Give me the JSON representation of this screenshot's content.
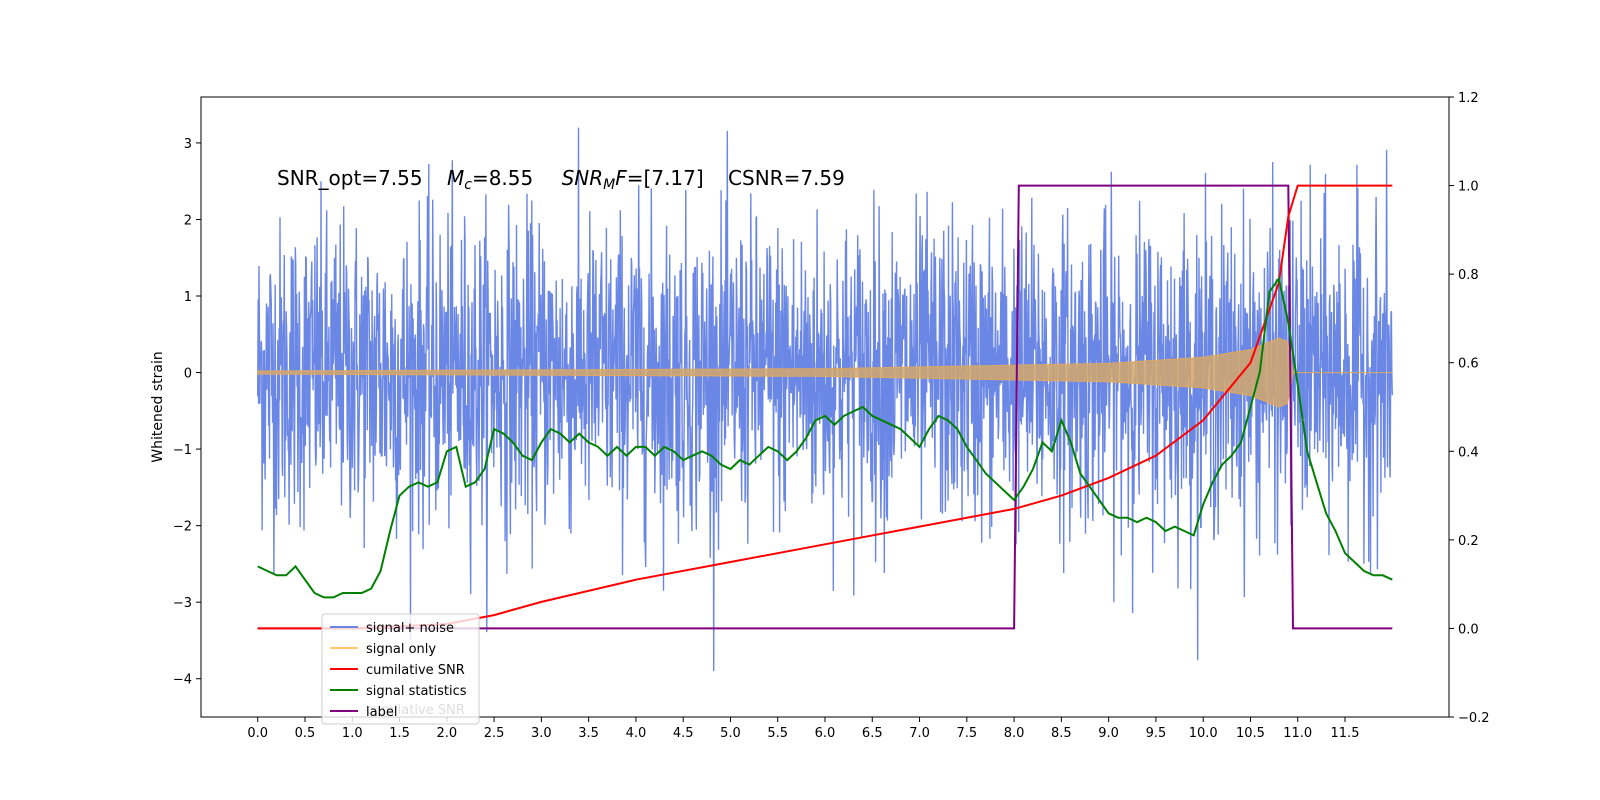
{
  "chart_data": {
    "type": "line",
    "title": "",
    "annotation": {
      "snr_opt": "SNR_opt=7.55",
      "mc_symbol": "M",
      "mc_sub": "c",
      "mc_value": "=8.55",
      "snrmf_symbol": "SNR",
      "snrmf_sub": "M",
      "snrmf_symbol2": "F",
      "snrmf_value": "=[7.17]",
      "csnr": "CSNR=7.59"
    },
    "ylabel": "Whitened strain",
    "xlabel": "",
    "xlim": [
      -0.6,
      12.6
    ],
    "ylim": [
      -4.5,
      3.6
    ],
    "y2lim": [
      -0.2,
      1.2
    ],
    "x_ticks": [
      "0.0",
      "0.5",
      "1.0",
      "1.5",
      "2.0",
      "2.5",
      "3.0",
      "3.5",
      "4.0",
      "4.5",
      "5.0",
      "5.5",
      "6.0",
      "6.5",
      "7.0",
      "7.5",
      "8.0",
      "8.5",
      "9.0",
      "9.5",
      "10.0",
      "10.5",
      "11.0",
      "11.5"
    ],
    "y_ticks": [
      "3",
      "2",
      "1",
      "0",
      "−1",
      "−2",
      "−3",
      "−4"
    ],
    "y2_ticks": [
      "1.2",
      "1.0",
      "0.8",
      "0.6",
      "0.4",
      "0.2",
      "0.0",
      "−0.2"
    ],
    "grid": false,
    "legend": {
      "position": "lower-left",
      "entries": [
        {
          "label": "signal+ noise",
          "color": "#6b87e5"
        },
        {
          "label": "signal only",
          "color": "#ffc869"
        },
        {
          "label": "cumilative SNR",
          "color": "#ff0000"
        },
        {
          "label": "signal statistics",
          "color": "#008000"
        },
        {
          "label": "label",
          "color": "#800080"
        }
      ],
      "hidden_text": "cumilative SNR"
    },
    "series": [
      {
        "name": "signal+ noise",
        "axis": "left",
        "color": "#6b87e5",
        "x_range": [
          0,
          12.0
        ],
        "amplitude_sd": 1.0
      },
      {
        "name": "signal only",
        "axis": "left",
        "color": "#d2a76b",
        "x_range": [
          0,
          12.0
        ],
        "envelope": [
          [
            0,
            0.02
          ],
          [
            6,
            0.05
          ],
          [
            9,
            0.12
          ],
          [
            10,
            0.2
          ],
          [
            10.5,
            0.3
          ],
          [
            10.8,
            0.45
          ],
          [
            10.9,
            0.4
          ],
          [
            10.95,
            0.0
          ],
          [
            12,
            0.0
          ]
        ]
      },
      {
        "name": "cumilative SNR",
        "axis": "right",
        "color": "#ff0000",
        "x": [
          0,
          1,
          2,
          2.5,
          3,
          4,
          5,
          6,
          7,
          8,
          8.5,
          9,
          9.5,
          10,
          10.5,
          10.8,
          10.9,
          11,
          12.0
        ],
        "y": [
          0,
          0,
          0.01,
          0.03,
          0.06,
          0.11,
          0.15,
          0.19,
          0.23,
          0.27,
          0.3,
          0.34,
          0.39,
          0.47,
          0.6,
          0.78,
          0.93,
          1.0,
          1.0
        ]
      },
      {
        "name": "signal statistics",
        "axis": "right",
        "color": "#008000",
        "x": [
          0,
          0.1,
          0.2,
          0.3,
          0.4,
          0.5,
          0.6,
          0.7,
          0.8,
          0.9,
          1.0,
          1.1,
          1.2,
          1.3,
          1.4,
          1.5,
          1.6,
          1.7,
          1.8,
          1.9,
          2.0,
          2.1,
          2.2,
          2.3,
          2.4,
          2.5,
          2.6,
          2.7,
          2.8,
          2.9,
          3.0,
          3.1,
          3.2,
          3.3,
          3.4,
          3.5,
          3.6,
          3.7,
          3.8,
          3.9,
          4.0,
          4.1,
          4.2,
          4.3,
          4.4,
          4.5,
          4.6,
          4.7,
          4.8,
          4.9,
          5.0,
          5.1,
          5.2,
          5.3,
          5.4,
          5.5,
          5.6,
          5.7,
          5.8,
          5.9,
          6.0,
          6.1,
          6.2,
          6.3,
          6.4,
          6.5,
          6.6,
          6.7,
          6.8,
          6.9,
          7.0,
          7.1,
          7.2,
          7.3,
          7.4,
          7.5,
          7.6,
          7.7,
          7.8,
          7.9,
          8.0,
          8.1,
          8.2,
          8.3,
          8.4,
          8.5,
          8.6,
          8.7,
          8.8,
          8.9,
          9.0,
          9.1,
          9.2,
          9.3,
          9.4,
          9.5,
          9.6,
          9.7,
          9.8,
          9.9,
          10.0,
          10.1,
          10.2,
          10.3,
          10.4,
          10.5,
          10.6,
          10.7,
          10.8,
          10.9,
          11.0,
          11.1,
          11.2,
          11.3,
          11.4,
          11.5,
          11.6,
          11.7,
          11.8,
          11.9,
          12.0
        ],
        "y": [
          0.14,
          0.13,
          0.12,
          0.12,
          0.14,
          0.11,
          0.08,
          0.07,
          0.07,
          0.08,
          0.08,
          0.08,
          0.09,
          0.13,
          0.22,
          0.3,
          0.32,
          0.33,
          0.32,
          0.33,
          0.4,
          0.41,
          0.32,
          0.33,
          0.36,
          0.45,
          0.44,
          0.42,
          0.39,
          0.38,
          0.42,
          0.45,
          0.44,
          0.42,
          0.44,
          0.42,
          0.41,
          0.39,
          0.41,
          0.39,
          0.41,
          0.41,
          0.39,
          0.41,
          0.4,
          0.38,
          0.39,
          0.4,
          0.39,
          0.37,
          0.36,
          0.38,
          0.37,
          0.39,
          0.41,
          0.4,
          0.38,
          0.4,
          0.43,
          0.47,
          0.48,
          0.46,
          0.48,
          0.49,
          0.5,
          0.48,
          0.47,
          0.46,
          0.45,
          0.43,
          0.41,
          0.45,
          0.48,
          0.47,
          0.45,
          0.41,
          0.38,
          0.35,
          0.33,
          0.31,
          0.29,
          0.32,
          0.36,
          0.42,
          0.4,
          0.47,
          0.42,
          0.35,
          0.32,
          0.29,
          0.26,
          0.25,
          0.25,
          0.24,
          0.25,
          0.24,
          0.22,
          0.23,
          0.22,
          0.21,
          0.28,
          0.33,
          0.37,
          0.39,
          0.42,
          0.5,
          0.58,
          0.76,
          0.79,
          0.69,
          0.55,
          0.4,
          0.33,
          0.26,
          0.22,
          0.17,
          0.15,
          0.13,
          0.12,
          0.12,
          0.11
        ]
      },
      {
        "name": "label",
        "axis": "right",
        "color": "#800080",
        "x": [
          0,
          8.0,
          8.05,
          10.9,
          10.95,
          12.0
        ],
        "y": [
          0,
          0,
          1,
          1,
          0,
          0
        ]
      }
    ]
  }
}
